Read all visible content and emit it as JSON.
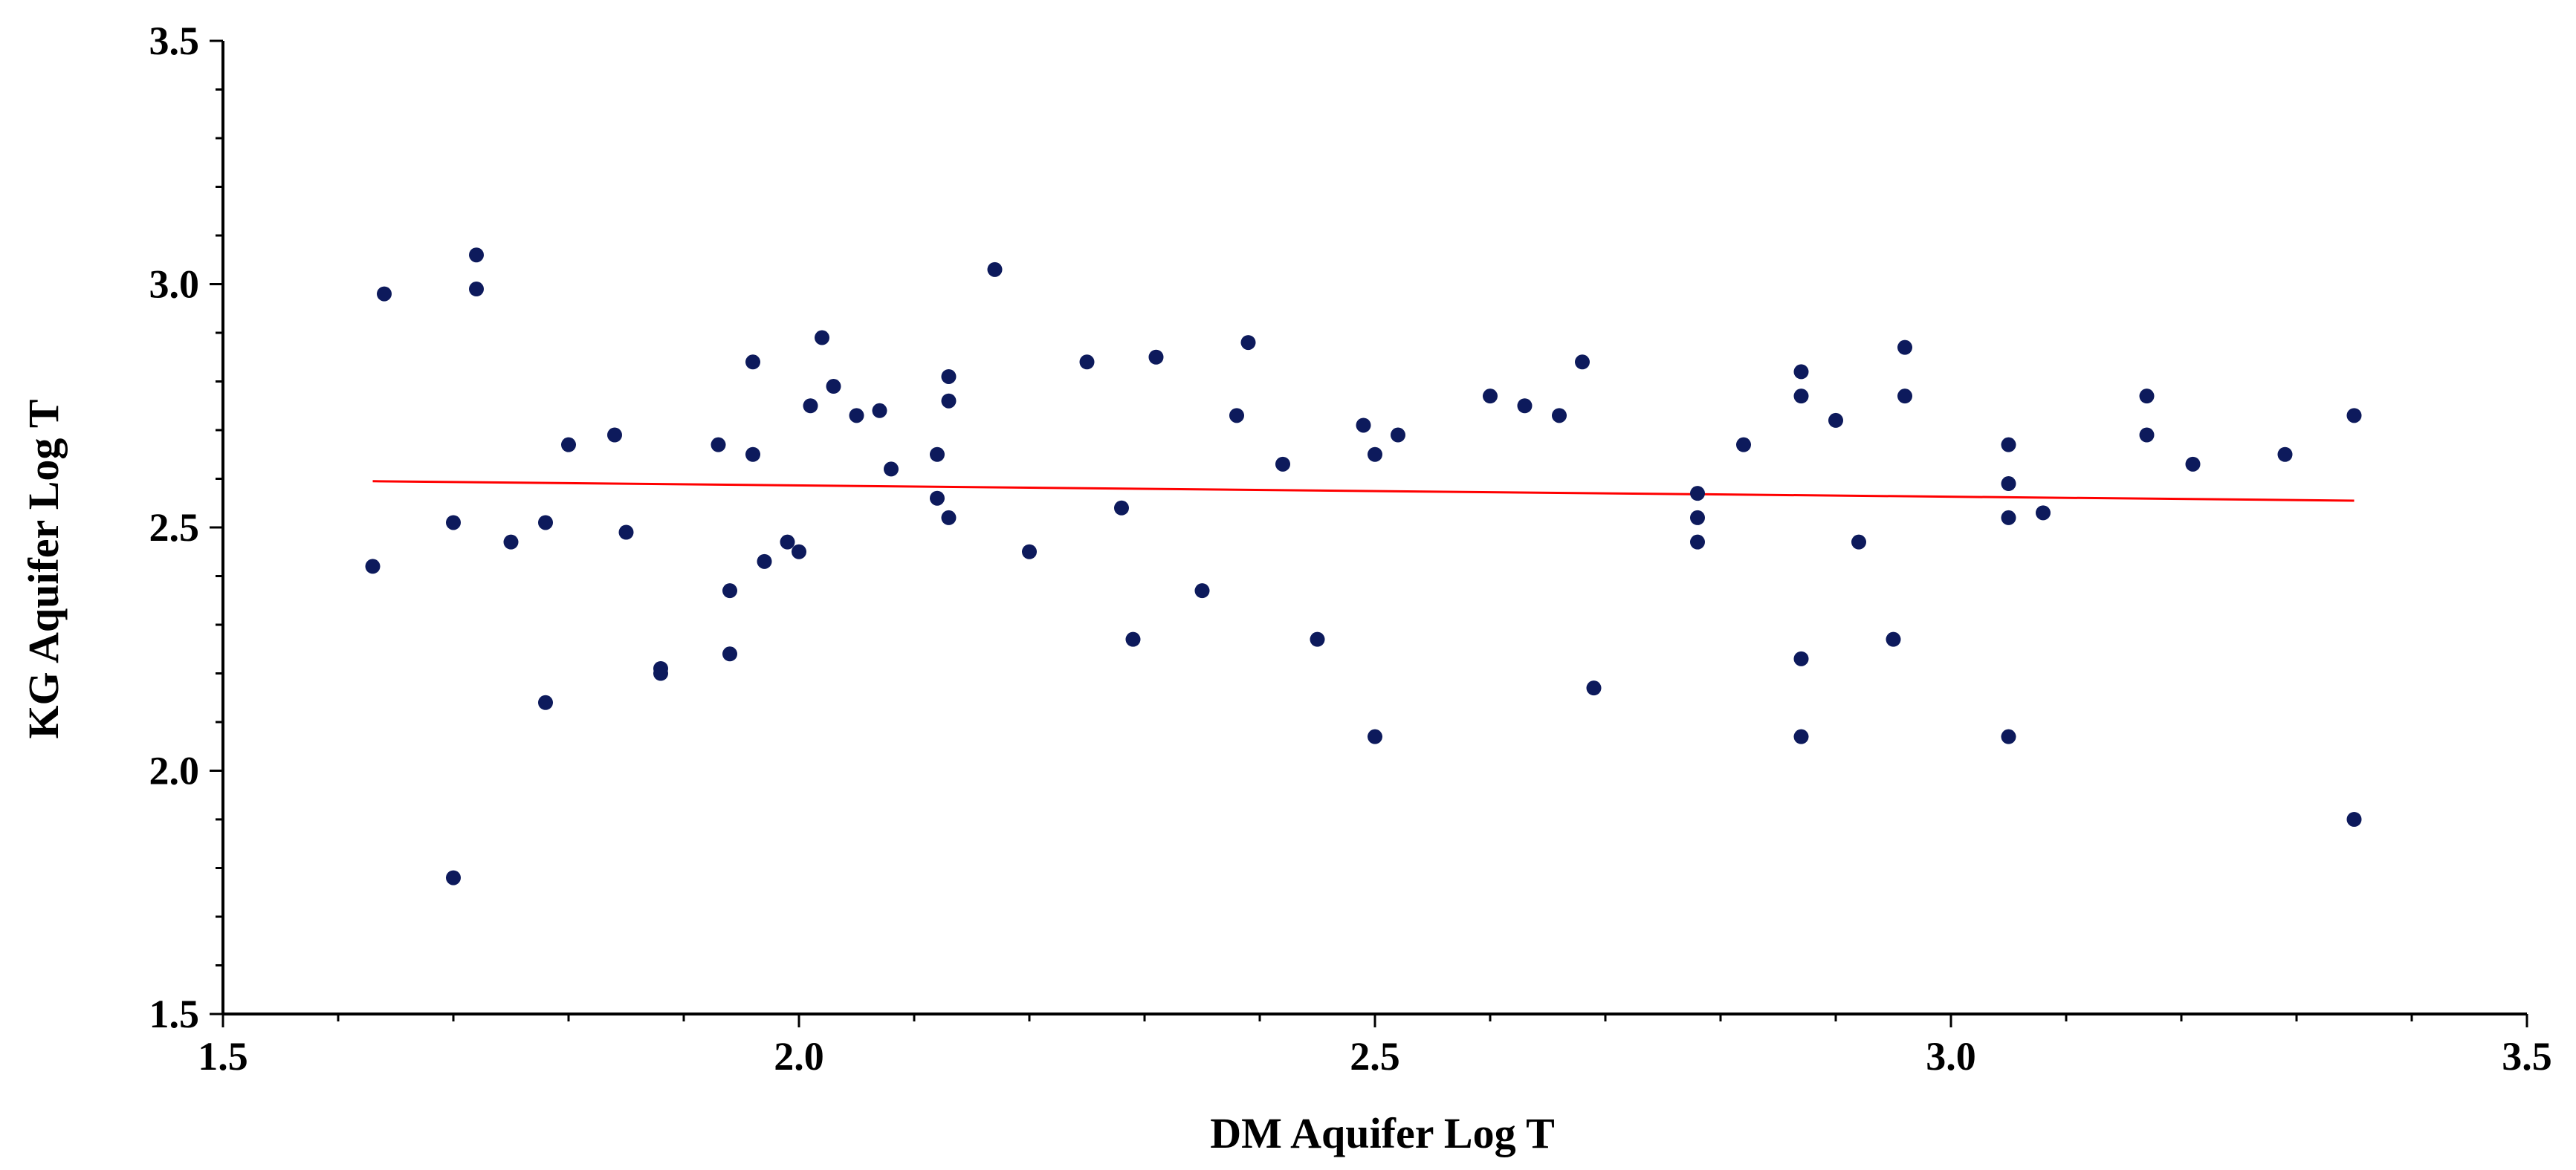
{
  "chart_data": {
    "type": "scatter",
    "title": "",
    "xlabel": "DM Aquifer Log T",
    "ylabel": "KG Aquifer Log T",
    "xlim": [
      1.5,
      3.5
    ],
    "ylim": [
      1.5,
      3.5
    ],
    "x_ticks": [
      "1.5",
      "2.0",
      "2.5",
      "3.0",
      "3.5"
    ],
    "y_ticks": [
      "1.5",
      "2.0",
      "2.5",
      "3.0",
      "3.5"
    ],
    "grid": false,
    "marker_color": "#0d1a5c",
    "trendline_color": "#ff0000",
    "trendline": {
      "x": [
        1.63,
        3.35
      ],
      "y": [
        2.595,
        2.555
      ]
    },
    "points": [
      [
        1.63,
        2.42
      ],
      [
        1.64,
        2.98
      ],
      [
        1.7,
        2.51
      ],
      [
        1.7,
        1.78
      ],
      [
        1.72,
        3.06
      ],
      [
        1.72,
        2.99
      ],
      [
        1.75,
        2.47
      ],
      [
        1.78,
        2.51
      ],
      [
        1.78,
        2.14
      ],
      [
        1.8,
        2.67
      ],
      [
        1.84,
        2.69
      ],
      [
        1.85,
        2.49
      ],
      [
        1.88,
        2.21
      ],
      [
        1.88,
        2.2
      ],
      [
        1.93,
        2.67
      ],
      [
        1.94,
        2.37
      ],
      [
        1.94,
        2.24
      ],
      [
        1.96,
        2.84
      ],
      [
        1.96,
        2.65
      ],
      [
        1.97,
        2.43
      ],
      [
        1.99,
        2.47
      ],
      [
        2.0,
        2.45
      ],
      [
        2.01,
        2.75
      ],
      [
        2.02,
        2.89
      ],
      [
        2.03,
        2.79
      ],
      [
        2.05,
        2.73
      ],
      [
        2.07,
        2.74
      ],
      [
        2.08,
        2.62
      ],
      [
        2.12,
        2.65
      ],
      [
        2.12,
        2.56
      ],
      [
        2.13,
        2.81
      ],
      [
        2.13,
        2.76
      ],
      [
        2.13,
        2.52
      ],
      [
        2.17,
        3.03
      ],
      [
        2.2,
        2.45
      ],
      [
        2.25,
        2.84
      ],
      [
        2.28,
        2.54
      ],
      [
        2.29,
        2.27
      ],
      [
        2.31,
        2.85
      ],
      [
        2.35,
        2.37
      ],
      [
        2.38,
        2.73
      ],
      [
        2.39,
        2.88
      ],
      [
        2.42,
        2.63
      ],
      [
        2.45,
        2.27
      ],
      [
        2.49,
        2.71
      ],
      [
        2.5,
        2.65
      ],
      [
        2.5,
        2.07
      ],
      [
        2.52,
        2.69
      ],
      [
        2.6,
        2.77
      ],
      [
        2.63,
        2.75
      ],
      [
        2.66,
        2.73
      ],
      [
        2.68,
        2.84
      ],
      [
        2.69,
        2.17
      ],
      [
        2.78,
        2.57
      ],
      [
        2.78,
        2.52
      ],
      [
        2.78,
        2.47
      ],
      [
        2.82,
        2.67
      ],
      [
        2.87,
        2.82
      ],
      [
        2.87,
        2.77
      ],
      [
        2.87,
        2.23
      ],
      [
        2.87,
        2.07
      ],
      [
        2.9,
        2.72
      ],
      [
        2.92,
        2.47
      ],
      [
        2.95,
        2.27
      ],
      [
        2.96,
        2.87
      ],
      [
        2.96,
        2.77
      ],
      [
        3.05,
        2.67
      ],
      [
        3.05,
        2.59
      ],
      [
        3.05,
        2.52
      ],
      [
        3.05,
        2.07
      ],
      [
        3.08,
        2.53
      ],
      [
        3.17,
        2.77
      ],
      [
        3.17,
        2.69
      ],
      [
        3.21,
        2.63
      ],
      [
        3.29,
        2.65
      ],
      [
        3.35,
        2.73
      ],
      [
        3.35,
        1.9
      ]
    ]
  }
}
